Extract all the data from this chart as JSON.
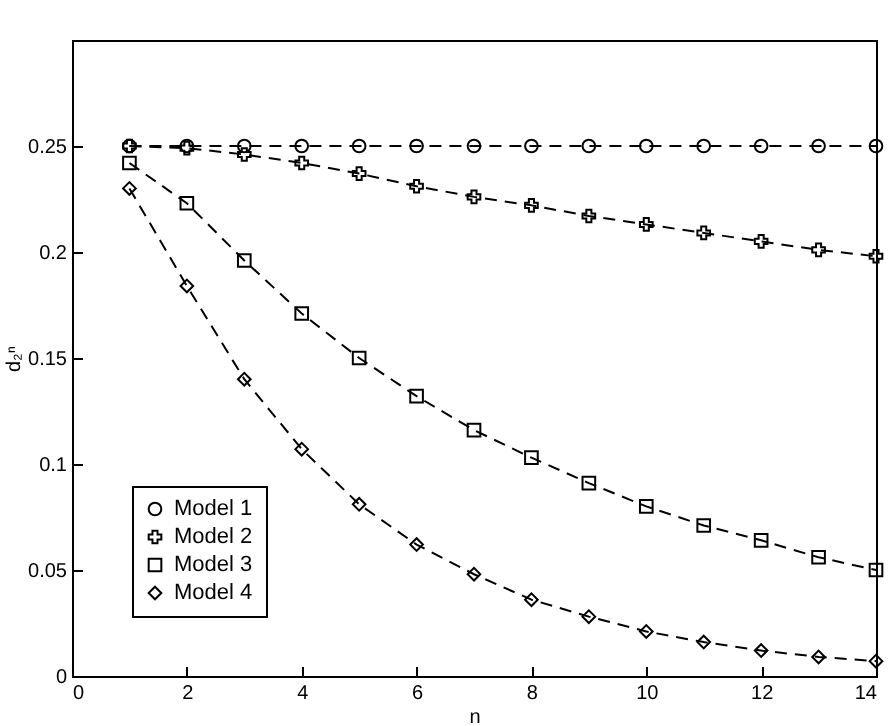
{
  "chart_data": {
    "type": "line",
    "xlabel": "n",
    "ylabel": "d₂ⁿ",
    "x": [
      1,
      2,
      3,
      4,
      5,
      6,
      7,
      8,
      9,
      10,
      11,
      12,
      13,
      14
    ],
    "xlim": [
      0,
      14
    ],
    "xticks": [
      0,
      2,
      4,
      6,
      8,
      10,
      12,
      14
    ],
    "ylim": [
      0,
      0.3
    ],
    "yticks": [
      0,
      0.05,
      0.1,
      0.15,
      0.2,
      0.25
    ],
    "grid": false,
    "legend": "bottom left",
    "line_style": "dashed",
    "series": [
      {
        "name": "Model 1",
        "color": "#000000",
        "marker": "circle",
        "values": [
          0.25,
          0.25,
          0.25,
          0.25,
          0.25,
          0.25,
          0.25,
          0.25,
          0.25,
          0.25,
          0.25,
          0.25,
          0.25,
          0.25
        ]
      },
      {
        "name": "Model 2",
        "color": "#000000",
        "marker": "cross",
        "values": [
          0.25,
          0.249,
          0.246,
          0.242,
          0.237,
          0.231,
          0.226,
          0.222,
          0.217,
          0.213,
          0.209,
          0.205,
          0.201,
          0.198
        ]
      },
      {
        "name": "Model 3",
        "color": "#000000",
        "marker": "square",
        "values": [
          0.242,
          0.223,
          0.196,
          0.171,
          0.15,
          0.132,
          0.116,
          0.103,
          0.091,
          0.08,
          0.071,
          0.064,
          0.056,
          0.05
        ]
      },
      {
        "name": "Model 4",
        "color": "#000000",
        "marker": "diamond",
        "values": [
          0.23,
          0.184,
          0.14,
          0.107,
          0.081,
          0.062,
          0.048,
          0.036,
          0.028,
          0.021,
          0.016,
          0.012,
          0.009,
          0.007
        ]
      }
    ]
  }
}
